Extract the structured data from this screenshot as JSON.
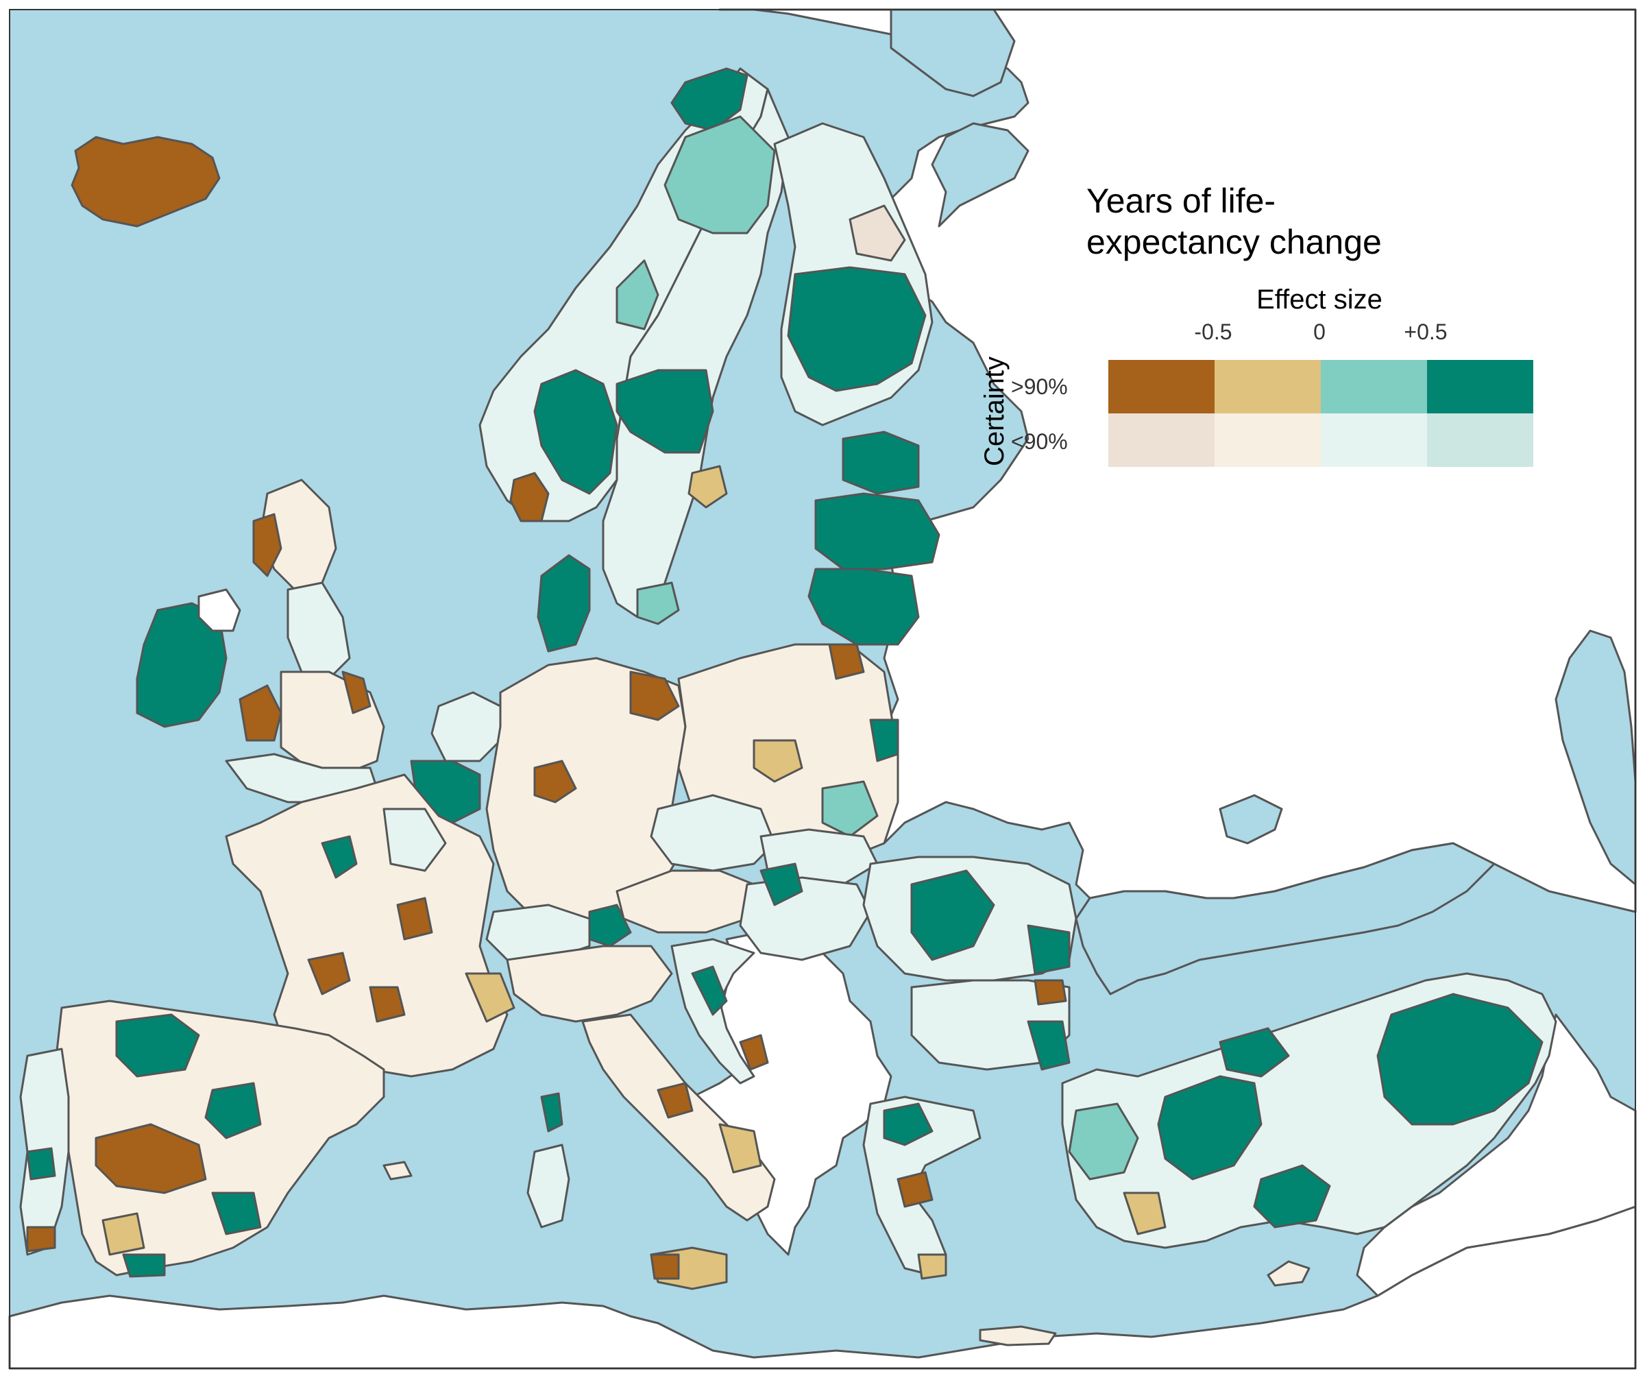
{
  "legend": {
    "title_line1": "Years of life-",
    "title_line2": "expectancy change",
    "effect_size_label": "Effect size",
    "ticks": [
      "-0.5",
      "0",
      "+0.5"
    ],
    "certainty_label": "Certainty",
    "row_labels": [
      ">90%",
      "<90%"
    ]
  },
  "colors": {
    "sea": "#add8e6",
    "land": "#ffffff",
    "border": "#555555",
    "high_certainty": [
      "#a6611a",
      "#dfc27d",
      "#80cdc1",
      "#018571"
    ],
    "low_certainty": [
      "#ede0d5",
      "#f7efe2",
      "#e5f4f1",
      "#cce6e2"
    ]
  }
}
